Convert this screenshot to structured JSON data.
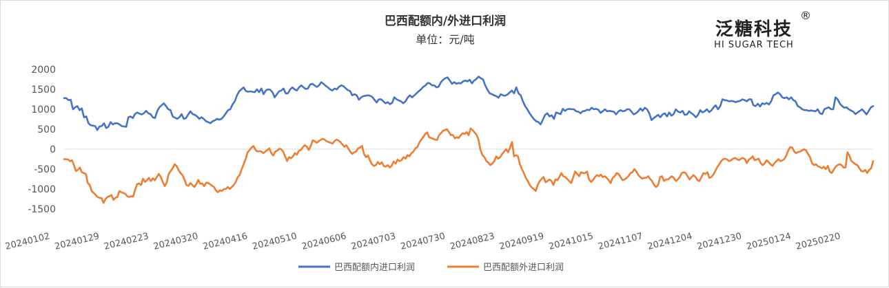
{
  "chart_data": {
    "type": "line",
    "title": "巴西配额内/外进口利润",
    "subtitle": "单位：元/吨",
    "brand": {
      "name_cn": "泛糖科技",
      "name_en": "HI SUGAR TECH",
      "registered_mark": "®"
    },
    "ylim": [
      -1500,
      2000
    ],
    "yticks": [
      2000,
      1500,
      1000,
      500,
      0,
      -500,
      -1000,
      -1500
    ],
    "xtick_labels": [
      "20240102",
      "20240129",
      "20240223",
      "20240320",
      "20240416",
      "20240510",
      "20240606",
      "20240703",
      "20240730",
      "20240823",
      "20240919",
      "20241015",
      "20241107",
      "20241204",
      "20241230",
      "20250124",
      "20250220"
    ],
    "grid": false,
    "legend_position": "bottom",
    "series": [
      {
        "name": "巴西配额内进口利润",
        "color": "#4472C4",
        "values": [
          1280,
          1280,
          1230,
          1240,
          1000,
          1050,
          1080,
          980,
          1020,
          800,
          820,
          650,
          600,
          590,
          580,
          480,
          570,
          580,
          650,
          530,
          560,
          680,
          620,
          650,
          650,
          620,
          580,
          570,
          560,
          800,
          820,
          780,
          880,
          920,
          890,
          870,
          900,
          960,
          900,
          880,
          800,
          780,
          950,
          1050,
          1100,
          1150,
          1080,
          1000,
          980,
          820,
          790,
          760,
          800,
          880,
          760,
          780,
          870,
          950,
          880,
          860,
          820,
          760,
          800,
          760,
          700,
          680,
          650,
          700,
          720,
          760,
          740,
          760,
          820,
          900,
          980,
          1000,
          1120,
          1200,
          1350,
          1450,
          1500,
          1550,
          1460,
          1440,
          1450,
          1440,
          1430,
          1500,
          1430,
          1520,
          1380,
          1470,
          1500,
          1490,
          1430,
          1300,
          1380,
          1450,
          1470,
          1520,
          1400,
          1400,
          1500,
          1550,
          1500,
          1470,
          1550,
          1600,
          1550,
          1510,
          1520,
          1620,
          1640,
          1600,
          1560,
          1600,
          1680,
          1640,
          1590,
          1550,
          1500,
          1470,
          1520,
          1500,
          1560,
          1600,
          1580,
          1530,
          1480,
          1460,
          1350,
          1380,
          1350,
          1240,
          1300,
          1330,
          1340,
          1350,
          1340,
          1310,
          1240,
          1170,
          1250,
          1250,
          1200,
          1150,
          1180,
          1130,
          1160,
          1300,
          1250,
          1220,
          1200,
          1150,
          1200,
          1290,
          1350,
          1300,
          1350,
          1400,
          1450,
          1500,
          1560,
          1600,
          1660,
          1650,
          1600,
          1600,
          1550,
          1570,
          1680,
          1740,
          1780,
          1800,
          1720,
          1640,
          1680,
          1640,
          1660,
          1650,
          1700,
          1720,
          1700,
          1740,
          1650,
          1720,
          1760,
          1820,
          1780,
          1750,
          1600,
          1490,
          1400,
          1380,
          1350,
          1330,
          1290,
          1380,
          1350,
          1340,
          1370,
          1420,
          1470,
          1400,
          1550,
          1400,
          1350,
          1200,
          1080,
          1000,
          900,
          820,
          750,
          700,
          680,
          620,
          740,
          860,
          900,
          820,
          850,
          760,
          920,
          900,
          880,
          1010,
          960,
          1000,
          1010,
          1000,
          1000,
          950,
          940,
          900,
          950,
          960,
          990,
          980,
          1040,
          1000,
          1010,
          990,
          910,
          950,
          1000,
          950,
          960,
          950,
          940,
          870,
          940,
          980,
          950,
          960,
          1000,
          1000,
          940,
          870,
          900,
          950,
          1020,
          960,
          1040,
          1000,
          900,
          730,
          780,
          820,
          860,
          800,
          870,
          900,
          820,
          920,
          840,
          880,
          1000,
          940,
          920,
          960,
          860,
          870,
          950,
          900,
          860,
          800,
          860,
          980,
          920,
          950,
          1000,
          930,
          970,
          1050,
          1100,
          1000,
          1080,
          1250,
          1230,
          1220,
          1200,
          1210,
          1200,
          1180,
          1200,
          1210,
          1250,
          1230,
          1200,
          1250,
          1250,
          1100,
          1080,
          1140,
          1070,
          1150,
          1130,
          1160,
          1120,
          1200,
          1350,
          1380,
          1420,
          1380,
          1300,
          1280,
          1300,
          1250,
          1300,
          1230,
          1200,
          1080,
          1050,
          1000,
          980,
          980,
          960,
          970,
          960,
          950,
          1000,
          900,
          880,
          1000,
          1030,
          1050,
          1000,
          1000,
          1300,
          1250,
          1140,
          1080,
          1040,
          1050,
          1000,
          970,
          940,
          880,
          920,
          960,
          1000,
          940,
          870,
          960,
          1050,
          1080
        ]
      },
      {
        "name": "巴西配额外进口利润",
        "color": "#ED7D31",
        "values": [
          -250,
          -250,
          -260,
          -300,
          -280,
          -400,
          -550,
          -520,
          -460,
          -580,
          -600,
          -620,
          -850,
          -900,
          -1050,
          -1100,
          -1150,
          -1200,
          -1220,
          -1230,
          -1350,
          -1250,
          -1200,
          -1180,
          -1150,
          -1270,
          -1220,
          -1200,
          -1050,
          -1080,
          -1100,
          -1120,
          -1180,
          -1200,
          -1180,
          -1190,
          -1020,
          -880,
          -860,
          -900,
          -740,
          -820,
          -780,
          -720,
          -800,
          -730,
          -780,
          -700,
          -620,
          -700,
          -820,
          -930,
          -840,
          -620,
          -550,
          -480,
          -380,
          -420,
          -520,
          -600,
          -650,
          -760,
          -900,
          -920,
          -850,
          -900,
          -950,
          -880,
          -770,
          -870,
          -860,
          -930,
          -840,
          -850,
          -880,
          -920,
          -950,
          -1040,
          -1080,
          -1030,
          -1050,
          -1000,
          -1000,
          -950,
          -1000,
          -950,
          -900,
          -820,
          -700,
          -650,
          -500,
          -380,
          -250,
          -80,
          -20,
          40,
          80,
          -20,
          -60,
          -50,
          -60,
          -100,
          -60,
          -20,
          20,
          -100,
          -160,
          -60,
          -40,
          10,
          0,
          -60,
          -180,
          -300,
          -200,
          -230,
          -180,
          -100,
          -140,
          -40,
          -20,
          50,
          100,
          60,
          -20,
          80,
          220,
          200,
          160,
          200,
          230,
          260,
          240,
          200,
          180,
          160,
          140,
          200,
          240,
          220,
          180,
          120,
          60,
          100,
          20,
          -60,
          -120,
          -80,
          -60,
          20,
          40,
          80,
          -120,
          -200,
          -160,
          -280,
          -380,
          -420,
          -400,
          -320,
          -380,
          -330,
          -420,
          -440,
          -400,
          -460,
          -420,
          -310,
          -360,
          -260,
          -300,
          -280,
          -200,
          -240,
          -150,
          -180,
          -100,
          -60,
          20,
          50,
          160,
          240,
          300,
          380,
          420,
          300,
          280,
          260,
          240,
          230,
          350,
          400,
          460,
          480,
          500,
          430,
          350,
          360,
          270,
          300,
          280,
          350,
          400,
          380,
          430,
          350,
          520,
          480,
          420,
          360,
          240,
          -20,
          -150,
          -200,
          -300,
          -340,
          -400,
          -360,
          -300,
          -180,
          -240,
          -200,
          -120,
          -60,
          0,
          -80,
          40,
          180,
          -180,
          -150,
          -180,
          -380,
          -500,
          -600,
          -720,
          -800,
          -900,
          -960,
          -1000,
          -1050,
          -900,
          -800,
          -750,
          -700,
          -830,
          -800,
          -760,
          -800,
          -900,
          -760,
          -780,
          -700,
          -600,
          -680,
          -700,
          -750,
          -800,
          -850,
          -700,
          -560,
          -620,
          -680,
          -580,
          -600,
          -600,
          -560,
          -760,
          -820,
          -780,
          -700,
          -650,
          -680,
          -640,
          -700,
          -680,
          -720,
          -780,
          -850,
          -720,
          -680,
          -600,
          -620,
          -700,
          -780,
          -760,
          -720,
          -680,
          -600,
          -580,
          -500,
          -560,
          -650,
          -700,
          -740,
          -720,
          -720,
          -680,
          -750,
          -800,
          -900,
          -950,
          -900,
          -700,
          -680,
          -800,
          -760,
          -760,
          -720,
          -680,
          -720,
          -800,
          -760,
          -700,
          -600,
          -580,
          -600,
          -680,
          -760,
          -700,
          -650,
          -700,
          -780,
          -800,
          -700,
          -600,
          -620,
          -580,
          -720,
          -700,
          -640,
          -550,
          -450,
          -380,
          -300,
          -250,
          -240,
          -260,
          -300,
          -280,
          -240,
          -220,
          -250,
          -280,
          -240,
          -220,
          -250,
          -350,
          -260,
          -230,
          -180,
          -280,
          -260,
          -240,
          -350,
          -400,
          -360,
          -280,
          -320,
          -380,
          -420,
          -350,
          -300,
          -250,
          -300,
          -280,
          -250,
          -160,
          -30,
          50,
          40,
          -60,
          -100,
          -70,
          -60,
          -30,
          0,
          -30,
          -120,
          -200,
          -350,
          -400,
          -380,
          -430,
          -450,
          -480,
          -440,
          -500,
          -420,
          -560,
          -600,
          -520,
          -440,
          -400,
          -380,
          -400,
          -460,
          -460,
          -80,
          -160,
          -300,
          -340,
          -380,
          -400,
          -480,
          -550,
          -560,
          -520,
          -600,
          -520,
          -480,
          -300
        ]
      }
    ]
  }
}
